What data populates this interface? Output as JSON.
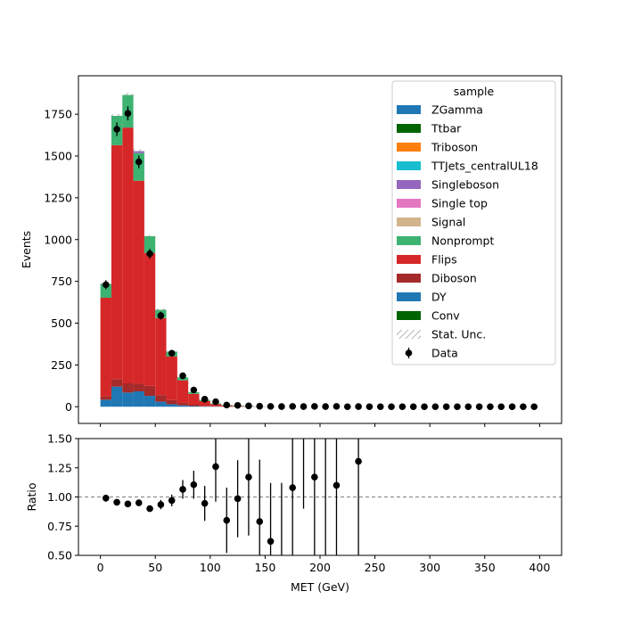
{
  "chart_data": {
    "type": "bar",
    "layout": "stacked histogram with ratio subplot",
    "x": {
      "label": "MET (GeV)",
      "range": [
        -20,
        420
      ],
      "ticks": [
        0,
        50,
        100,
        150,
        200,
        250,
        300,
        350,
        400
      ],
      "bin_width": 10,
      "bin_centers": [
        5,
        15,
        25,
        35,
        45,
        55,
        65,
        75,
        85,
        95,
        105,
        115,
        125,
        135,
        145,
        155,
        165,
        175,
        185,
        195,
        205,
        215,
        225,
        235,
        245,
        255,
        265,
        275,
        285,
        295,
        305,
        315,
        325,
        335,
        345,
        355,
        365,
        375,
        385,
        395
      ]
    },
    "main": {
      "ylabel": "Events",
      "ylim": [
        -100,
        1980
      ],
      "yticks": [
        0,
        250,
        500,
        750,
        1000,
        1250,
        1500,
        1750
      ],
      "stack": [
        {
          "name": "DY",
          "color": "#1f77b4",
          "values": [
            42,
            120,
            85,
            92,
            65,
            30,
            15,
            8,
            4,
            2,
            1,
            0,
            0,
            0,
            0,
            0,
            0,
            0,
            0,
            0,
            0,
            0,
            0,
            0,
            0,
            0,
            0,
            0,
            0,
            0,
            0,
            0,
            0,
            0,
            0,
            0,
            0,
            0,
            0,
            0
          ]
        },
        {
          "name": "Diboson",
          "color": "#a52a2a",
          "values": [
            20,
            45,
            55,
            45,
            60,
            40,
            25,
            15,
            8,
            4,
            2,
            1,
            1,
            0,
            0,
            0,
            0,
            0,
            0,
            0,
            0,
            0,
            0,
            0,
            0,
            0,
            0,
            0,
            0,
            0,
            0,
            0,
            0,
            0,
            0,
            0,
            0,
            0,
            0,
            0
          ]
        },
        {
          "name": "Flips",
          "color": "#d62728",
          "values": [
            590,
            1400,
            1530,
            1215,
            795,
            460,
            260,
            135,
            65,
            28,
            12,
            6,
            4,
            2,
            1,
            1,
            0,
            0,
            0,
            0,
            0,
            0,
            0,
            0,
            0,
            0,
            0,
            0,
            0,
            0,
            0,
            0,
            0,
            0,
            0,
            0,
            0,
            0,
            0,
            0
          ]
        },
        {
          "name": "Nonprompt",
          "color": "#3cb371",
          "values": [
            83,
            175,
            195,
            165,
            100,
            50,
            30,
            17,
            10,
            7,
            5,
            3,
            2,
            2,
            1,
            1,
            0,
            0,
            0,
            0,
            0,
            0,
            0,
            0,
            0,
            0,
            0,
            0,
            0,
            0,
            0,
            0,
            0,
            0,
            0,
            0,
            0,
            0,
            0,
            0
          ]
        },
        {
          "name": "Singleboson",
          "color": "#9467bd",
          "values": [
            0,
            0,
            0,
            12,
            0,
            0,
            0,
            0,
            0,
            0,
            0,
            0,
            0,
            0,
            0,
            0,
            0,
            0,
            0,
            0,
            0,
            0,
            0,
            0,
            0,
            0,
            0,
            0,
            0,
            0,
            0,
            0,
            0,
            0,
            0,
            0,
            0,
            0,
            0,
            0
          ]
        }
      ],
      "stat_unc": [
        6,
        10,
        12,
        11,
        9,
        7,
        5,
        4,
        3,
        2,
        1,
        1,
        1,
        1,
        0,
        0,
        0,
        0,
        0,
        0,
        0,
        0,
        0,
        0,
        0,
        0,
        0,
        0,
        0,
        0,
        0,
        0,
        0,
        0,
        0,
        0,
        0,
        0,
        0,
        0
      ],
      "data": {
        "name": "Data",
        "values": [
          730,
          1660,
          1755,
          1465,
          915,
          545,
          320,
          185,
          100,
          45,
          30,
          10,
          8,
          5,
          3,
          2,
          1,
          2,
          1,
          2,
          1,
          2,
          0,
          1,
          0,
          0,
          0,
          0,
          0,
          0,
          0,
          0,
          0,
          0,
          0,
          0,
          0,
          0,
          0,
          0
        ],
        "errors": [
          27,
          41,
          42,
          38,
          30,
          23,
          18,
          14,
          10,
          7,
          5,
          3,
          3,
          2,
          2,
          1,
          1,
          1,
          1,
          1,
          1,
          1,
          0,
          1,
          0,
          0,
          0,
          0,
          0,
          0,
          0,
          0,
          0,
          0,
          0,
          0,
          0,
          0,
          0,
          0
        ]
      }
    },
    "ratio": {
      "ylabel": "Ratio",
      "ylim": [
        0.5,
        1.5
      ],
      "yticks": [
        0.5,
        0.75,
        1.0,
        1.25,
        1.5
      ],
      "ytick_labels": [
        "0.50",
        "0.75",
        "1.00",
        "1.25",
        "1.50"
      ],
      "reference_line": 1.0,
      "points": [
        {
          "x": 5,
          "y": 0.99,
          "err": 0.03
        },
        {
          "x": 15,
          "y": 0.955,
          "err": 0.02
        },
        {
          "x": 25,
          "y": 0.94,
          "err": 0.02
        },
        {
          "x": 35,
          "y": 0.95,
          "err": 0.02
        },
        {
          "x": 45,
          "y": 0.9,
          "err": 0.025
        },
        {
          "x": 55,
          "y": 0.935,
          "err": 0.04
        },
        {
          "x": 65,
          "y": 0.97,
          "err": 0.05
        },
        {
          "x": 75,
          "y": 1.065,
          "err": 0.08
        },
        {
          "x": 85,
          "y": 1.105,
          "err": 0.12
        },
        {
          "x": 95,
          "y": 0.945,
          "err": 0.15
        },
        {
          "x": 105,
          "y": 1.26,
          "err": 0.3
        },
        {
          "x": 115,
          "y": 0.8,
          "err": 0.28
        },
        {
          "x": 125,
          "y": 0.985,
          "err": 0.33
        },
        {
          "x": 135,
          "y": 1.17,
          "err": 0.5
        },
        {
          "x": 145,
          "y": 0.79,
          "err": 0.53
        },
        {
          "x": 155,
          "y": 0.62,
          "err": 0.5
        },
        {
          "x": 165,
          "y": null,
          "err_low": 0.0,
          "err_high": 1.12
        },
        {
          "x": 175,
          "y": 1.08,
          "err": 1.1
        },
        {
          "x": 185,
          "y": null,
          "err_low": 0.9,
          "err_high": 1.6
        },
        {
          "x": 195,
          "y": 1.17,
          "err": 1.2
        },
        {
          "x": 205,
          "y": null,
          "err_low": 0.0,
          "err_high": 1.6
        },
        {
          "x": 215,
          "y": 1.1,
          "err": 1.2
        },
        {
          "x": 235,
          "y": 1.305,
          "err": 1.5
        }
      ]
    },
    "legend": {
      "title": "sample",
      "placement": "top-right",
      "entries": [
        {
          "label": "ZGamma",
          "color": "#1f77b4",
          "kind": "patch"
        },
        {
          "label": "Ttbar",
          "color": "#006400",
          "kind": "patch"
        },
        {
          "label": "Triboson",
          "color": "#ff7f0e",
          "kind": "patch"
        },
        {
          "label": "TTJets_centralUL18",
          "color": "#17becf",
          "kind": "patch"
        },
        {
          "label": "Singleboson",
          "color": "#9467bd",
          "kind": "patch"
        },
        {
          "label": "Single top",
          "color": "#e377c2",
          "kind": "patch"
        },
        {
          "label": "Signal",
          "color": "#d2b48c",
          "kind": "patch"
        },
        {
          "label": "Nonprompt",
          "color": "#3cb371",
          "kind": "patch"
        },
        {
          "label": "Flips",
          "color": "#d62728",
          "kind": "patch"
        },
        {
          "label": "Diboson",
          "color": "#a52a2a",
          "kind": "patch"
        },
        {
          "label": "DY",
          "color": "#1f77b4",
          "kind": "patch"
        },
        {
          "label": "Conv",
          "color": "#006400",
          "kind": "patch"
        },
        {
          "label": "Stat. Unc.",
          "color": "#808080",
          "kind": "hatch"
        },
        {
          "label": "Data",
          "color": "#000000",
          "kind": "errorbar"
        }
      ]
    }
  }
}
